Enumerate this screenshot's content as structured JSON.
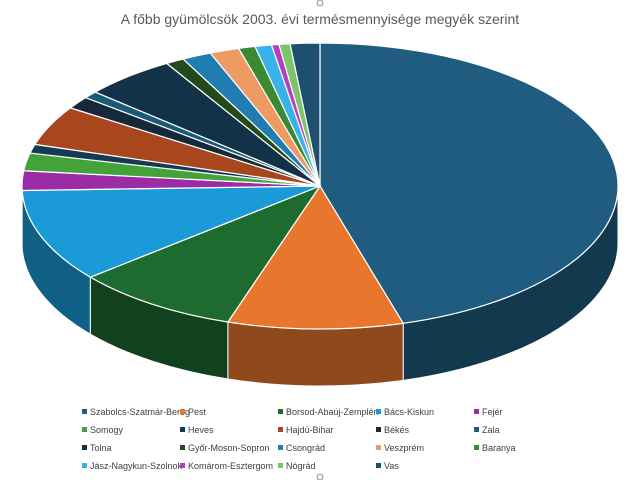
{
  "chart_data": {
    "type": "pie",
    "title": "A főbb gyümölcsök 2003. évi termésmennyisége megyék szerint",
    "categories": [
      "Szabolcs-Szatmár-Bereg",
      "Pest",
      "Borsod-Abaúj-Zemplén",
      "Bács-Kiskun",
      "Fejér",
      "Somogy",
      "Heves",
      "Hajdú-Bihar",
      "Békés",
      "Zala",
      "Tolna",
      "Győr-Moson-Sopron",
      "Csongrád",
      "Veszprém",
      "Baranya",
      "Jász-Nagykun-Szolnok",
      "Komárom-Esztergom",
      "Nógrád",
      "Vas"
    ],
    "values": [
      45.5,
      9.5,
      9.0,
      10.5,
      2.2,
      2.0,
      1.0,
      4.5,
      1.4,
      0.8,
      5.0,
      1.0,
      1.6,
      1.6,
      0.9,
      0.9,
      0.4,
      0.6,
      1.6
    ],
    "colors": [
      "#1f5c80",
      "#e8762c",
      "#1d6b2f",
      "#1a9bd7",
      "#9c2ba6",
      "#43a33a",
      "#163a52",
      "#a8471d",
      "#16293a",
      "#1a5a78",
      "#123247",
      "#244a1c",
      "#1f7db1",
      "#ee9a63",
      "#3a8a33",
      "#38b2e8",
      "#b53fc0",
      "#7cc569",
      "#1f4f6e"
    ],
    "legend": "bottom"
  }
}
